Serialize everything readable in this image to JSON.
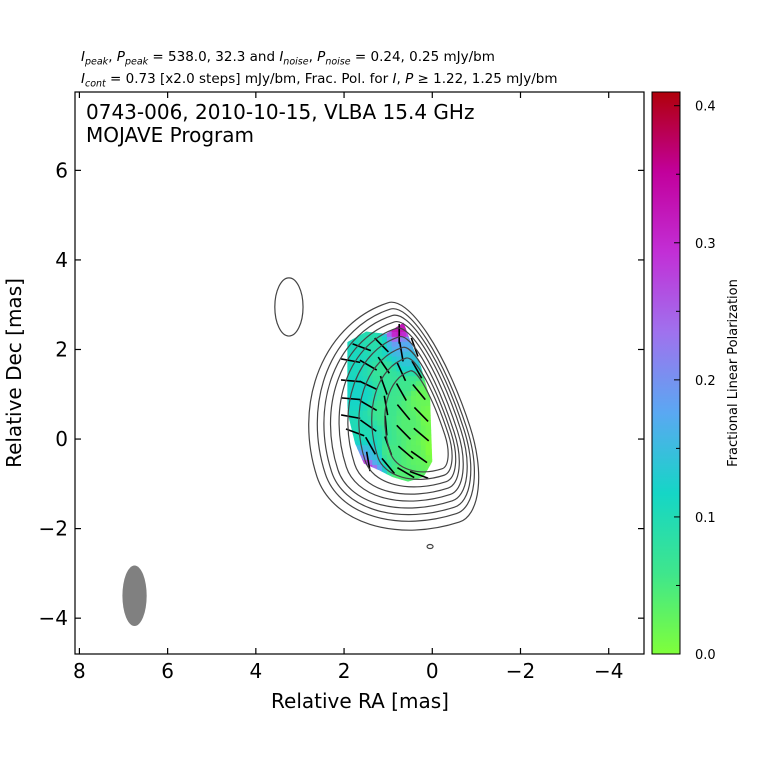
{
  "header": {
    "line1_text": ", P = 538.0, 32.3 and I, P = 0.24, 0.25 mJy/bm",
    "line1": {
      "i1": "I",
      "s1": "peak",
      "p1": "P",
      "s2": "peak",
      "mid": " = 538.0, 32.3 and ",
      "i2": "I",
      "s3": "noise",
      "p2": "P",
      "s4": "noise",
      "tail": " = 0.24, 0.25 mJy/bm"
    },
    "line2": {
      "i1": "I",
      "s1": "cont",
      "mid": " = 0.73 [x2.0 steps] mJy/bm, Frac. Pol. for ",
      "i2": "I",
      "comma": ", ",
      "p2": "P",
      "tail": " ≥  1.22, 1.25 mJy/bm"
    }
  },
  "chart_data": {
    "type": "heatmap",
    "title": "0743-006, 2010-10-15, VLBA 15.4 GHz",
    "subtitle": "MOJAVE Program",
    "xlabel": "Relative RA [mas]",
    "ylabel": "Relative Dec [mas]",
    "xlim": [
      8.1,
      -4.8
    ],
    "ylim": [
      -4.8,
      7.75
    ],
    "x_ticks": [
      8,
      6,
      4,
      2,
      0,
      -2,
      -4
    ],
    "x_tick_labels": [
      "8",
      "6",
      "4",
      "2",
      "0",
      "−2",
      "−4"
    ],
    "y_ticks": [
      -4,
      -2,
      0,
      2,
      4,
      6
    ],
    "y_tick_labels": [
      "−4",
      "−2",
      "0",
      "2",
      "4",
      "6"
    ],
    "colorbar": {
      "label": "Fractional Linear Polarization",
      "range": [
        0.0,
        0.41
      ],
      "ticks": [
        0.0,
        0.1,
        0.2,
        0.3,
        0.4
      ],
      "tick_labels": [
        "0.0",
        "0.1",
        "0.2",
        "0.3",
        "0.4"
      ],
      "colors": [
        "#7fff3a",
        "#3fe68c",
        "#15d6c6",
        "#5aa8f2",
        "#9f72ee",
        "#c22fd6",
        "#c2009c",
        "#b0000a"
      ]
    },
    "contours": {
      "base_mJy_per_bm": 0.73,
      "step_factor": 2.0,
      "center": [
        0.0,
        0.0
      ],
      "levels_extent_mas": [
        {
          "e": 0.9,
          "w": 2.75,
          "n": 3.2,
          "s": 1.95
        },
        {
          "e": 0.82,
          "w": 2.55,
          "n": 3.05,
          "s": 1.75
        },
        {
          "e": 0.75,
          "w": 2.4,
          "n": 2.9,
          "s": 1.6
        },
        {
          "e": 0.68,
          "w": 2.25,
          "n": 2.75,
          "s": 1.45
        },
        {
          "e": 0.6,
          "w": 2.05,
          "n": 2.6,
          "s": 1.3
        },
        {
          "e": 0.52,
          "w": 1.85,
          "n": 2.4,
          "s": 1.15
        },
        {
          "e": 0.45,
          "w": 1.6,
          "n": 2.15,
          "s": 1.0
        },
        {
          "e": 0.38,
          "w": 1.3,
          "n": 1.9,
          "s": 0.85
        },
        {
          "e": 0.3,
          "w": 1.0,
          "n": 1.6,
          "s": 0.7
        }
      ],
      "secondary": {
        "x": 3.25,
        "y": 2.95,
        "rx": 0.32,
        "ry": 0.65
      },
      "tiny": {
        "x": 0.05,
        "y": -2.4
      }
    },
    "beam": {
      "x": 6.75,
      "y": -3.5,
      "major_mas": 1.35,
      "minor_mas": 0.55,
      "pa_deg": 0
    },
    "polarization_region": {
      "polygon": [
        [
          1.95,
          2.15
        ],
        [
          1.5,
          2.4
        ],
        [
          1.05,
          2.35
        ],
        [
          0.65,
          2.6
        ],
        [
          0.5,
          2.2
        ],
        [
          0.25,
          1.6
        ],
        [
          0.05,
          0.9
        ],
        [
          0.0,
          -0.5
        ],
        [
          0.2,
          -0.85
        ],
        [
          0.55,
          -0.95
        ],
        [
          0.9,
          -0.85
        ],
        [
          1.2,
          -0.7
        ],
        [
          1.55,
          -0.55
        ],
        [
          1.75,
          -0.1
        ],
        [
          1.9,
          0.5
        ],
        [
          1.98,
          1.2
        ]
      ],
      "frac_pol_samples": [
        {
          "x": 1.85,
          "y": 1.8,
          "v": 0.11
        },
        {
          "x": 1.7,
          "y": 1.0,
          "v": 0.12
        },
        {
          "x": 1.55,
          "y": 0.2,
          "v": 0.1
        },
        {
          "x": 1.35,
          "y": -0.4,
          "v": 0.14
        },
        {
          "x": 1.5,
          "y": -0.6,
          "v": 0.3
        },
        {
          "x": 1.3,
          "y": 2.2,
          "v": 0.09
        },
        {
          "x": 1.1,
          "y": 1.5,
          "v": 0.07
        },
        {
          "x": 1.1,
          "y": 0.6,
          "v": 0.06
        },
        {
          "x": 1.0,
          "y": -0.3,
          "v": 0.05
        },
        {
          "x": 0.75,
          "y": 2.45,
          "v": 0.33
        },
        {
          "x": 0.65,
          "y": 2.1,
          "v": 0.17
        },
        {
          "x": 0.55,
          "y": 1.8,
          "v": 0.14
        },
        {
          "x": 0.6,
          "y": 1.2,
          "v": 0.06
        },
        {
          "x": 0.5,
          "y": 0.4,
          "v": 0.04
        },
        {
          "x": 0.35,
          "y": -0.3,
          "v": 0.03
        },
        {
          "x": 0.1,
          "y": 0.5,
          "v": 0.01
        },
        {
          "x": 0.05,
          "y": -0.2,
          "v": 0.0
        },
        {
          "x": 0.3,
          "y": 1.0,
          "v": 0.02
        },
        {
          "x": 0.7,
          "y": -0.8,
          "v": 0.04
        }
      ],
      "evpa_vectors_deg_from_north": [
        {
          "x": 1.85,
          "y": 1.75,
          "a": 80
        },
        {
          "x": 1.85,
          "y": 1.3,
          "a": 85
        },
        {
          "x": 1.85,
          "y": 0.9,
          "a": 85
        },
        {
          "x": 1.85,
          "y": 0.5,
          "a": 80
        },
        {
          "x": 1.75,
          "y": 0.15,
          "a": 70
        },
        {
          "x": 1.6,
          "y": 2.05,
          "a": 70
        },
        {
          "x": 1.45,
          "y": 1.65,
          "a": 60
        },
        {
          "x": 1.45,
          "y": 1.2,
          "a": 65
        },
        {
          "x": 1.45,
          "y": 0.75,
          "a": 60
        },
        {
          "x": 1.45,
          "y": 0.3,
          "a": 55
        },
        {
          "x": 1.4,
          "y": -0.15,
          "a": 30
        },
        {
          "x": 1.45,
          "y": -0.5,
          "a": 10
        },
        {
          "x": 1.15,
          "y": 2.1,
          "a": 45
        },
        {
          "x": 1.1,
          "y": 1.65,
          "a": 35
        },
        {
          "x": 1.1,
          "y": 1.2,
          "a": 20
        },
        {
          "x": 1.05,
          "y": 0.75,
          "a": 10
        },
        {
          "x": 1.05,
          "y": 0.3,
          "a": 5
        },
        {
          "x": 1.0,
          "y": -0.15,
          "a": 20
        },
        {
          "x": 1.0,
          "y": -0.6,
          "a": 40
        },
        {
          "x": 0.75,
          "y": 2.35,
          "a": 0
        },
        {
          "x": 0.7,
          "y": 1.95,
          "a": 10
        },
        {
          "x": 0.7,
          "y": 1.5,
          "a": 25
        },
        {
          "x": 0.7,
          "y": 1.05,
          "a": 30
        },
        {
          "x": 0.65,
          "y": 0.6,
          "a": 40
        },
        {
          "x": 0.65,
          "y": 0.15,
          "a": 45
        },
        {
          "x": 0.6,
          "y": -0.3,
          "a": 50
        },
        {
          "x": 0.6,
          "y": -0.75,
          "a": 60
        },
        {
          "x": 0.4,
          "y": 2.05,
          "a": 20
        },
        {
          "x": 0.35,
          "y": 1.55,
          "a": 30
        },
        {
          "x": 0.3,
          "y": 1.05,
          "a": 40
        },
        {
          "x": 0.25,
          "y": 0.55,
          "a": 45
        },
        {
          "x": 0.25,
          "y": 0.1,
          "a": 50
        },
        {
          "x": 0.3,
          "y": -0.4,
          "a": 55
        },
        {
          "x": 0.3,
          "y": -0.8,
          "a": 70
        }
      ]
    }
  }
}
